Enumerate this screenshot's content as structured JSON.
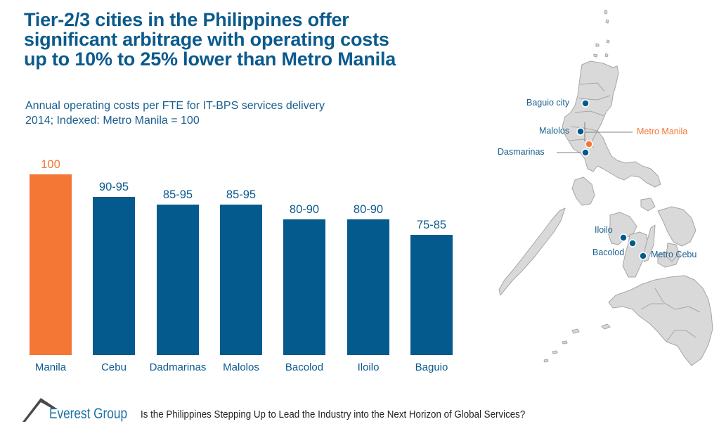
{
  "header": {
    "title_lines": [
      "Tier-2/3 cities in the Philippines offer",
      "significant arbitrage with operating costs",
      "up to 10% to 25% lower than Metro Manila"
    ],
    "subtitle_lines": [
      "Annual operating costs per FTE for IT-BPS services delivery",
      "2014; Indexed: Metro Manila = 100"
    ]
  },
  "colors": {
    "highlight": "#f47735",
    "primary": "#045a8d",
    "title": "#0b5a8c",
    "map_fill": "#d9d9d9",
    "map_stroke": "#a6a6a6"
  },
  "chart_data": {
    "type": "bar",
    "title": "Annual operating costs per FTE for IT-BPS services delivery",
    "subtitle": "2014; Indexed: Metro Manila = 100",
    "xlabel": "",
    "ylabel": "",
    "categories": [
      "Manila",
      "Cebu",
      "Dadmarinas",
      "Malolos",
      "Bacolod",
      "Iloilo",
      "Baguio"
    ],
    "value_labels": [
      "100",
      "90-95",
      "85-95",
      "85-95",
      "80-90",
      "80-90",
      "75-85"
    ],
    "range_low": [
      100,
      90,
      85,
      85,
      80,
      80,
      75
    ],
    "range_high": [
      100,
      95,
      95,
      95,
      90,
      90,
      85
    ],
    "values": [
      100,
      92.5,
      90,
      90,
      85,
      85,
      80
    ],
    "highlighted_category": "Manila",
    "grid": false,
    "axes_visible": false
  },
  "map": {
    "labels": [
      {
        "name": "Baguio city",
        "highlight": false
      },
      {
        "name": "Malolos",
        "highlight": false
      },
      {
        "name": "Metro Manila",
        "highlight": true
      },
      {
        "name": "Dasmarinas",
        "highlight": false
      },
      {
        "name": "Iloilo",
        "highlight": false
      },
      {
        "name": "Bacolod",
        "highlight": false
      },
      {
        "name": "Metro Cebu",
        "highlight": false
      }
    ]
  },
  "footer": {
    "brand": "Everest Group",
    "note": "Is the Philippines Stepping Up to Lead the Industry into the Next Horizon of Global Services?"
  }
}
